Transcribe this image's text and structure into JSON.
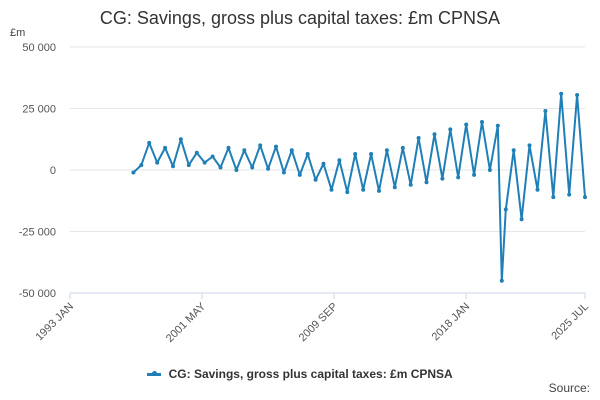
{
  "title": "CG: Savings, gross plus capital taxes: £m CPNSA",
  "unit": "£m",
  "source_label": "Source:",
  "colors": {
    "series": "#1f7fb6",
    "grid": "#e6e6e6",
    "axis": "#ccd6eb"
  },
  "chart_data": {
    "type": "line",
    "title": "CG: Savings, gross plus capital taxes: £m CPNSA",
    "ylabel": "£m",
    "ylim": [
      -50000,
      50000
    ],
    "yticks": [
      50000,
      25000,
      0,
      -25000,
      -50000
    ],
    "ytick_labels": [
      "50 000",
      "25 000",
      "0",
      "-25 000",
      "-50 000"
    ],
    "xlim": [
      "1993 JAN",
      "2025 JUL"
    ],
    "xticks": [
      "1993 JAN",
      "2001 MAY",
      "2009 SEP",
      "2018 JAN",
      "2025 JUL"
    ],
    "grid": "horizontal",
    "legend_position": "bottom",
    "series": [
      {
        "name": "CG: Savings, gross plus capital taxes: £m CPNSA",
        "x": [
          "1997 JAN",
          "1997 JUL",
          "1998 JAN",
          "1998 JUL",
          "1999 JAN",
          "1999 JUL",
          "2000 JAN",
          "2000 JUL",
          "2001 JAN",
          "2001 JUL",
          "2002 JAN",
          "2002 JUL",
          "2003 JAN",
          "2003 JUL",
          "2004 JAN",
          "2004 JUL",
          "2005 JAN",
          "2005 JUL",
          "2006 JAN",
          "2006 JUL",
          "2007 JAN",
          "2007 JUL",
          "2008 JAN",
          "2008 JUL",
          "2009 JAN",
          "2009 JUL",
          "2010 JAN",
          "2010 JUL",
          "2011 JAN",
          "2011 JUL",
          "2012 JAN",
          "2012 JUL",
          "2013 JAN",
          "2013 JUL",
          "2014 JAN",
          "2014 JUL",
          "2015 JAN",
          "2015 JUL",
          "2016 JAN",
          "2016 JUL",
          "2017 JAN",
          "2017 JUL",
          "2018 JAN",
          "2018 JUL",
          "2019 JAN",
          "2019 JUL",
          "2020 JAN",
          "2020 APR",
          "2020 JUL",
          "2021 JAN",
          "2021 JUL",
          "2022 JAN",
          "2022 JUL",
          "2023 JAN",
          "2023 JUL",
          "2024 JAN",
          "2024 JUL",
          "2025 JAN",
          "2025 JUL"
        ],
        "values": [
          -1000,
          2000,
          11000,
          3000,
          9000,
          1500,
          12500,
          2000,
          7000,
          3000,
          5500,
          1000,
          9000,
          0,
          8000,
          1000,
          10000,
          500,
          9500,
          -1000,
          8000,
          -2000,
          6500,
          -4000,
          2500,
          -8000,
          4000,
          -9000,
          6500,
          -8000,
          6500,
          -8500,
          8000,
          -7000,
          9000,
          -6000,
          13000,
          -5000,
          14500,
          -3500,
          16500,
          -3000,
          18500,
          -2000,
          19500,
          0,
          18000,
          -45000,
          -16000,
          8000,
          -20000,
          10000,
          -8000,
          24000,
          -11000,
          31000,
          -10000,
          30500,
          -11000
        ]
      }
    ]
  }
}
